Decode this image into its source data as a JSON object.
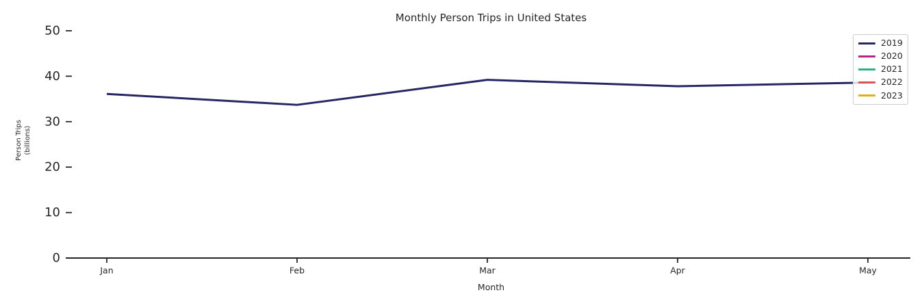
{
  "figure": {
    "background": "#ffffff"
  },
  "chart_data": {
    "type": "line",
    "title": "Monthly Person Trips in United States",
    "xlabel": "Month",
    "ylabel": "Person Trips (billions)",
    "ylabel_lines": [
      "Person Trips",
      "(billions)"
    ],
    "categories": [
      "Jan",
      "Feb",
      "Mar",
      "Apr",
      "May"
    ],
    "y_ticks": [
      0,
      10,
      20,
      30,
      40,
      50
    ],
    "ylim": [
      0,
      52.7
    ],
    "grid": false,
    "legend_position": "upper right",
    "series": [
      {
        "name": "2019",
        "color": "#272665",
        "values": [
          36.1,
          33.7,
          39.2,
          37.8,
          38.6
        ]
      },
      {
        "name": "2020",
        "color": "#ba2286",
        "values": []
      },
      {
        "name": "2021",
        "color": "#29b287",
        "values": []
      },
      {
        "name": "2022",
        "color": "#d85454",
        "values": []
      },
      {
        "name": "2023",
        "color": "#dfb01e",
        "values": []
      }
    ],
    "layout_colors": {
      "axis": "#262626",
      "background": "#ffffff",
      "legend_border": "#cccccc"
    }
  }
}
